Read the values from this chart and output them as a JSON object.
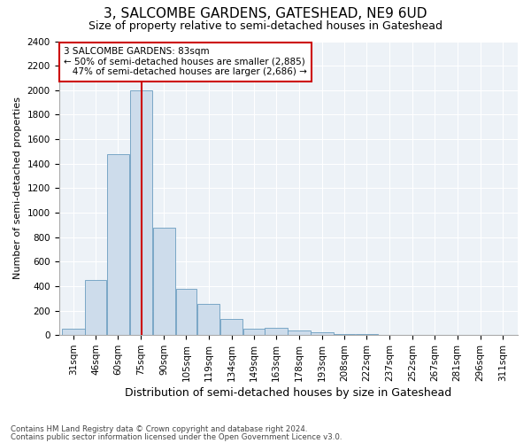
{
  "title": "3, SALCOMBE GARDENS, GATESHEAD, NE9 6UD",
  "subtitle": "Size of property relative to semi-detached houses in Gateshead",
  "xlabel": "Distribution of semi-detached houses by size in Gateshead",
  "ylabel": "Number of semi-detached properties",
  "bin_edges": [
    31,
    46,
    60,
    75,
    90,
    105,
    119,
    134,
    149,
    163,
    178,
    193,
    208,
    222,
    237,
    252,
    267,
    281,
    296,
    311,
    325
  ],
  "bar_heights": [
    50,
    450,
    1480,
    2000,
    880,
    375,
    255,
    130,
    50,
    60,
    35,
    20,
    12,
    10,
    5,
    5,
    3,
    3,
    3,
    2
  ],
  "bar_color": "#cddceb",
  "bar_edge_color": "#6a9cc0",
  "vline_x": 83,
  "vline_color": "#cc0000",
  "ylim": [
    0,
    2400
  ],
  "yticks": [
    0,
    200,
    400,
    600,
    800,
    1000,
    1200,
    1400,
    1600,
    1800,
    2000,
    2200,
    2400
  ],
  "annotation_line1": "3 SALCOMBE GARDENS: 83sqm",
  "annotation_line2": "← 50% of semi-detached houses are smaller (2,885)",
  "annotation_line3": "   47% of semi-detached houses are larger (2,686) →",
  "annotation_box_color": "#cc0000",
  "footer1": "Contains HM Land Registry data © Crown copyright and database right 2024.",
  "footer2": "Contains public sector information licensed under the Open Government Licence v3.0.",
  "background_color": "#edf2f7",
  "grid_color": "#ffffff",
  "title_fontsize": 11,
  "subtitle_fontsize": 9,
  "tick_fontsize": 7.5,
  "ylabel_fontsize": 8,
  "xlabel_fontsize": 9
}
